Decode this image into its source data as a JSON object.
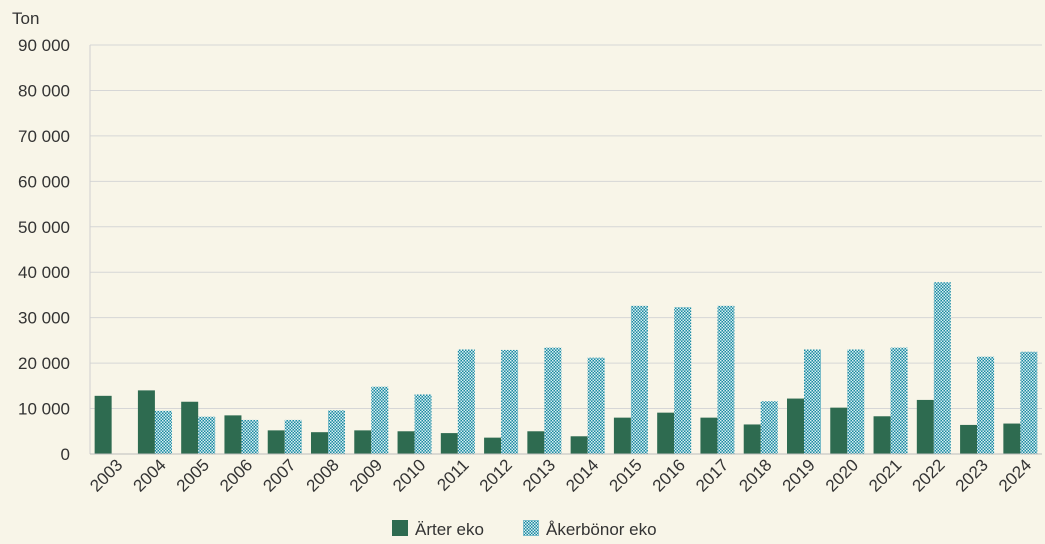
{
  "chart_data": {
    "type": "bar",
    "ylabel": "Ton",
    "ylim": [
      0,
      90000
    ],
    "yticks": [
      0,
      10000,
      20000,
      30000,
      40000,
      50000,
      60000,
      70000,
      80000,
      90000
    ],
    "ytick_labels": [
      "0",
      "10 000",
      "20 000",
      "30 000",
      "40 000",
      "50 000",
      "60 000",
      "70 000",
      "80 000",
      "90 000"
    ],
    "grid": true,
    "legend_position": "bottom",
    "categories": [
      "2003",
      "2004",
      "2005",
      "2006",
      "2007",
      "2008",
      "2009",
      "2010",
      "2011",
      "2012",
      "2013",
      "2014",
      "2015",
      "2016",
      "2017",
      "2018",
      "2019",
      "2020",
      "2021",
      "2022",
      "2023",
      "2024"
    ],
    "series": [
      {
        "name": "Ärter eko",
        "color": "#2e6b50",
        "pattern": "solid",
        "values": [
          12800,
          14000,
          11500,
          8500,
          5200,
          4800,
          5200,
          5000,
          4600,
          3600,
          5000,
          3900,
          8000,
          9100,
          8000,
          6500,
          12200,
          10200,
          8300,
          11900,
          6400,
          6700
        ]
      },
      {
        "name": "Åkerbönor eko",
        "color": "#1a8aa0",
        "pattern": "checker",
        "values": [
          0,
          9500,
          8200,
          7500,
          7500,
          9600,
          14800,
          13100,
          23000,
          22900,
          23400,
          21200,
          32600,
          32300,
          32600,
          11600,
          23000,
          23000,
          23400,
          37800,
          21400,
          22500
        ]
      }
    ]
  }
}
